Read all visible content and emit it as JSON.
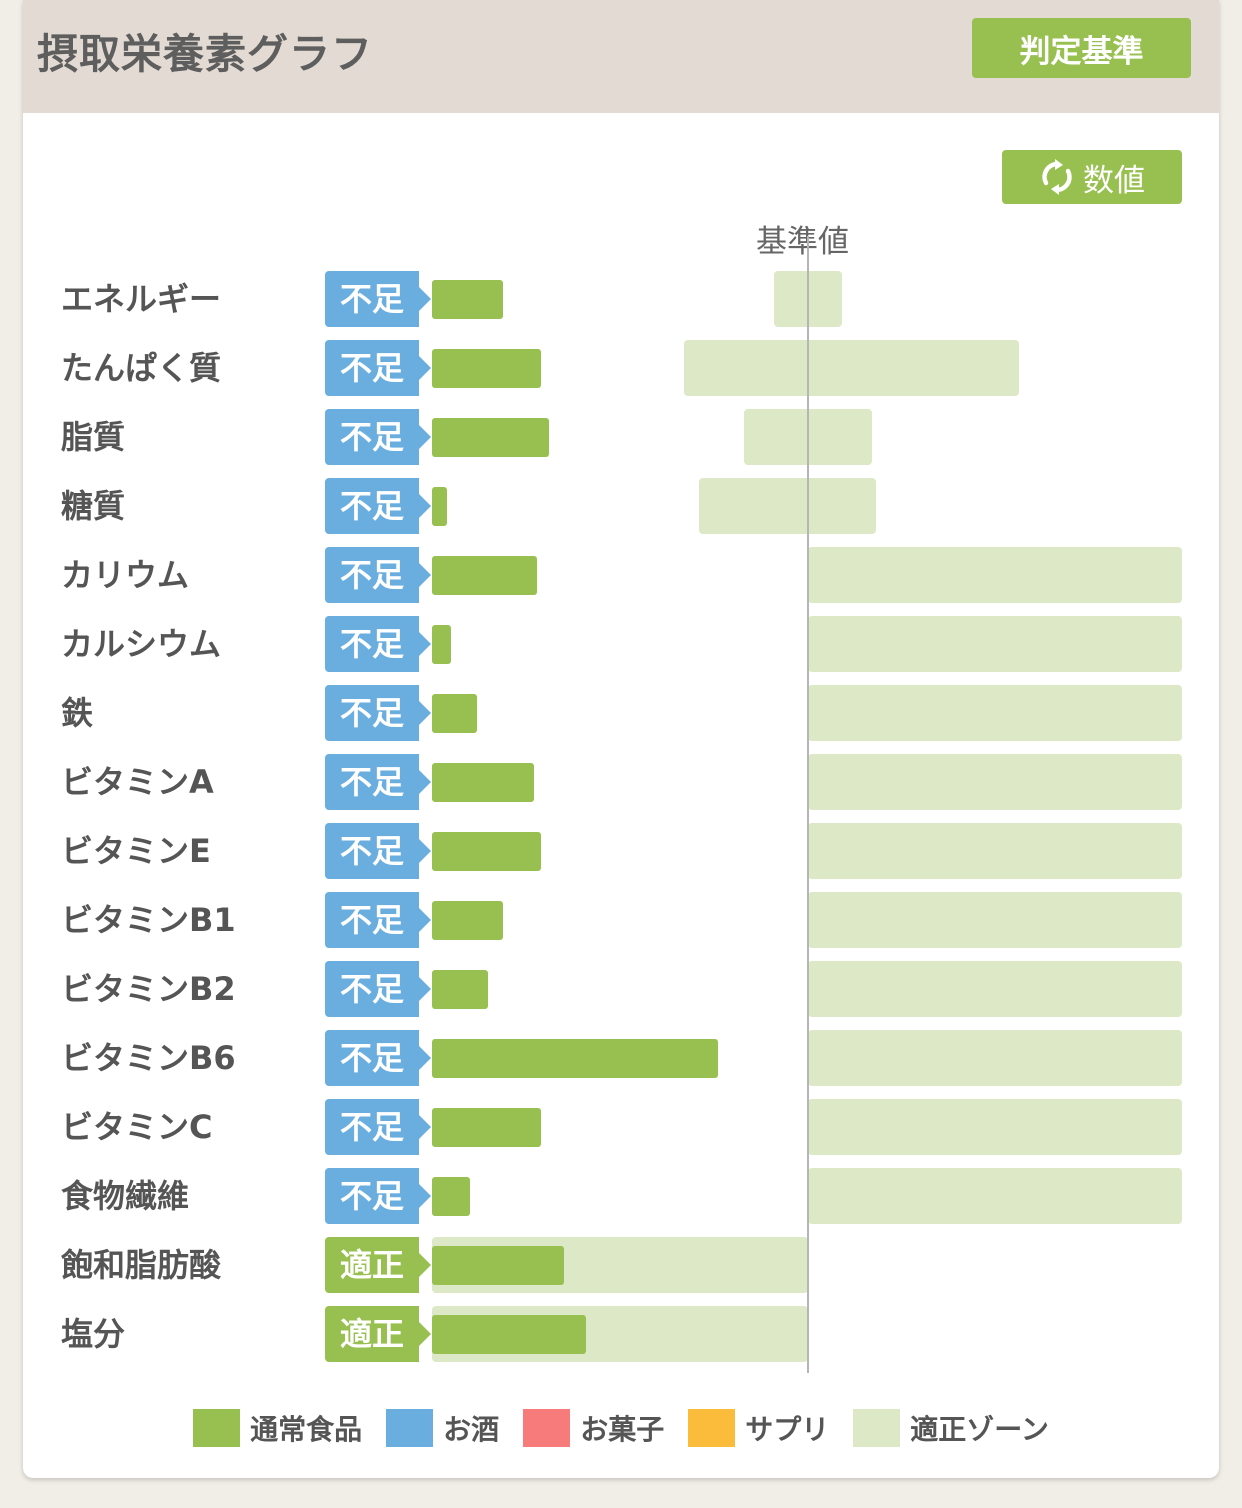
{
  "header": {
    "title": "摂取栄養素グラフ",
    "criteria_button": "判定基準"
  },
  "toolbar": {
    "values_button": "数値",
    "values_button_icon": "refresh-icon"
  },
  "chart": {
    "reference_label": "基準値",
    "status_colors": {
      "不足": "#6aaee0",
      "適正": "#98c050"
    },
    "intake_color": "#98c050",
    "zone_color": "#dce8c6",
    "rows": [
      {
        "label": "エネルギー",
        "status": "不足",
        "intake_pct": 19,
        "zone_pct": [
          91,
          109
        ]
      },
      {
        "label": "たんぱく質",
        "status": "不足",
        "intake_pct": 29,
        "zone_pct": [
          67,
          156
        ]
      },
      {
        "label": "脂質",
        "status": "不足",
        "intake_pct": 31,
        "zone_pct": [
          83,
          117
        ]
      },
      {
        "label": "糖質",
        "status": "不足",
        "intake_pct": 4,
        "zone_pct": [
          71,
          118
        ]
      },
      {
        "label": "カリウム",
        "status": "不足",
        "intake_pct": 28,
        "zone_pct": [
          100,
          200
        ]
      },
      {
        "label": "カルシウム",
        "status": "不足",
        "intake_pct": 5,
        "zone_pct": [
          100,
          200
        ]
      },
      {
        "label": "鉄",
        "status": "不足",
        "intake_pct": 12,
        "zone_pct": [
          100,
          200
        ]
      },
      {
        "label": "ビタミンA",
        "status": "不足",
        "intake_pct": 27,
        "zone_pct": [
          100,
          200
        ]
      },
      {
        "label": "ビタミンE",
        "status": "不足",
        "intake_pct": 29,
        "zone_pct": [
          100,
          200
        ]
      },
      {
        "label": "ビタミンB1",
        "status": "不足",
        "intake_pct": 19,
        "zone_pct": [
          100,
          200
        ]
      },
      {
        "label": "ビタミンB2",
        "status": "不足",
        "intake_pct": 15,
        "zone_pct": [
          100,
          200
        ]
      },
      {
        "label": "ビタミンB6",
        "status": "不足",
        "intake_pct": 76,
        "zone_pct": [
          100,
          200
        ]
      },
      {
        "label": "ビタミンC",
        "status": "不足",
        "intake_pct": 29,
        "zone_pct": [
          100,
          200
        ]
      },
      {
        "label": "食物繊維",
        "status": "不足",
        "intake_pct": 10,
        "zone_pct": [
          100,
          200
        ]
      },
      {
        "label": "飽和脂肪酸",
        "status": "適正",
        "intake_pct": 35,
        "zone_pct": [
          0,
          100
        ]
      },
      {
        "label": "塩分",
        "status": "適正",
        "intake_pct": 41,
        "zone_pct": [
          0,
          100
        ]
      }
    ]
  },
  "legend": [
    {
      "label": "通常食品",
      "color": "#98c050"
    },
    {
      "label": "お酒",
      "color": "#6aaee0"
    },
    {
      "label": "お菓子",
      "color": "#f77b7b"
    },
    {
      "label": "サプリ",
      "color": "#fbbc3c"
    },
    {
      "label": "適正ゾーン",
      "color": "#dce8c6"
    }
  ]
}
